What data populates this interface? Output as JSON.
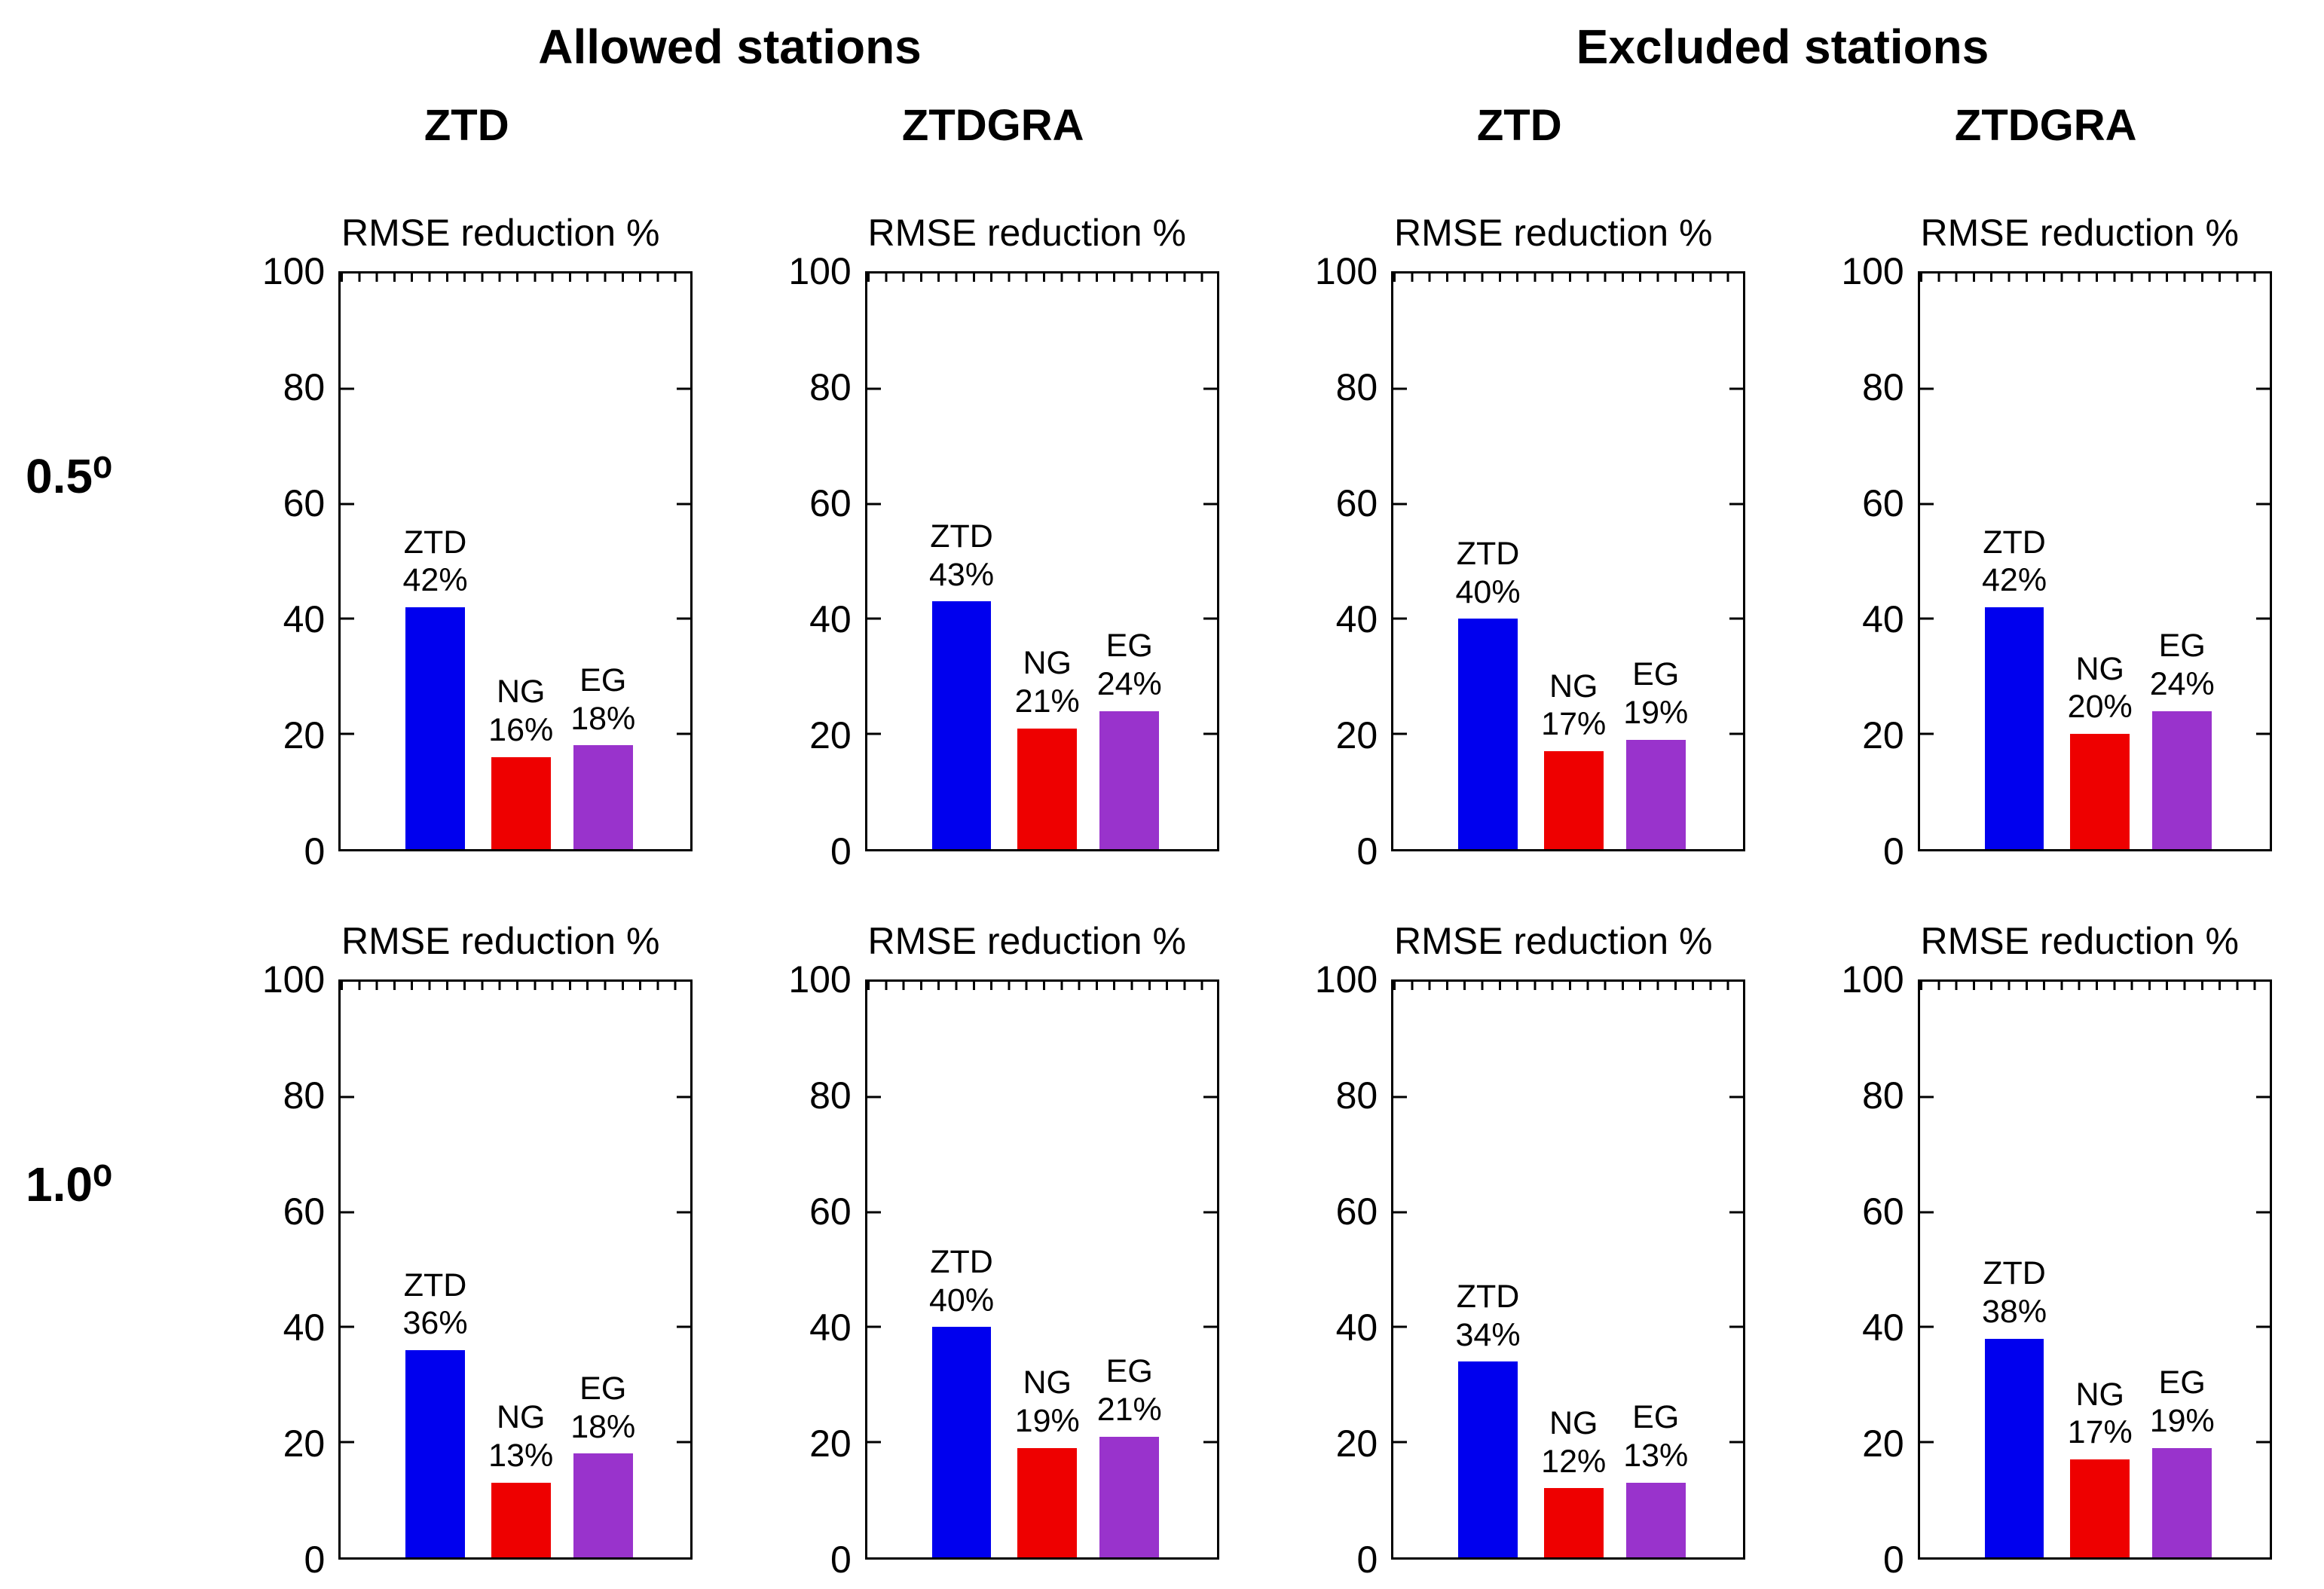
{
  "header": {
    "group_headers": [
      {
        "label": "Allowed stations"
      },
      {
        "label": "Excluded stations"
      }
    ],
    "column_headers": [
      {
        "label": "ZTD"
      },
      {
        "label": "ZTDGRA"
      },
      {
        "label": "ZTD"
      },
      {
        "label": "ZTDGRA"
      }
    ]
  },
  "rows": [
    {
      "label": "0.5⁰"
    },
    {
      "label": "1.0⁰"
    }
  ],
  "axis": {
    "ylim": [
      0,
      100
    ],
    "ticks": [
      0,
      20,
      40,
      60,
      80,
      100
    ],
    "grid": false
  },
  "bar_colors": [
    "#0000EE",
    "#EE0000",
    "#9933CC"
  ],
  "value_suffix": "%",
  "chart_data": [
    {
      "type": "bar",
      "row": "0.5⁰",
      "station_group": "Allowed stations",
      "panel": "ZTD",
      "title": "RMSE reduction %",
      "categories": [
        "ZTD",
        "NG",
        "EG"
      ],
      "values": [
        42,
        16,
        18
      ],
      "ylim": [
        0,
        100
      ],
      "yticks": [
        0,
        20,
        40,
        60,
        80,
        100
      ]
    },
    {
      "type": "bar",
      "row": "0.5⁰",
      "station_group": "Allowed stations",
      "panel": "ZTDGRA",
      "title": "RMSE reduction %",
      "categories": [
        "ZTD",
        "NG",
        "EG"
      ],
      "values": [
        43,
        21,
        24
      ],
      "ylim": [
        0,
        100
      ],
      "yticks": [
        0,
        20,
        40,
        60,
        80,
        100
      ]
    },
    {
      "type": "bar",
      "row": "0.5⁰",
      "station_group": "Excluded stations",
      "panel": "ZTD",
      "title": "RMSE reduction %",
      "categories": [
        "ZTD",
        "NG",
        "EG"
      ],
      "values": [
        40,
        17,
        19
      ],
      "ylim": [
        0,
        100
      ],
      "yticks": [
        0,
        20,
        40,
        60,
        80,
        100
      ]
    },
    {
      "type": "bar",
      "row": "0.5⁰",
      "station_group": "Excluded stations",
      "panel": "ZTDGRA",
      "title": "RMSE reduction %",
      "categories": [
        "ZTD",
        "NG",
        "EG"
      ],
      "values": [
        42,
        20,
        24
      ],
      "ylim": [
        0,
        100
      ],
      "yticks": [
        0,
        20,
        40,
        60,
        80,
        100
      ]
    },
    {
      "type": "bar",
      "row": "1.0⁰",
      "station_group": "Allowed stations",
      "panel": "ZTD",
      "title": "RMSE reduction %",
      "categories": [
        "ZTD",
        "NG",
        "EG"
      ],
      "values": [
        36,
        13,
        18
      ],
      "ylim": [
        0,
        100
      ],
      "yticks": [
        0,
        20,
        40,
        60,
        80,
        100
      ]
    },
    {
      "type": "bar",
      "row": "1.0⁰",
      "station_group": "Allowed stations",
      "panel": "ZTDGRA",
      "title": "RMSE reduction %",
      "categories": [
        "ZTD",
        "NG",
        "EG"
      ],
      "values": [
        40,
        19,
        21
      ],
      "ylim": [
        0,
        100
      ],
      "yticks": [
        0,
        20,
        40,
        60,
        80,
        100
      ]
    },
    {
      "type": "bar",
      "row": "1.0⁰",
      "station_group": "Excluded stations",
      "panel": "ZTD",
      "title": "RMSE reduction %",
      "categories": [
        "ZTD",
        "NG",
        "EG"
      ],
      "values": [
        34,
        12,
        13
      ],
      "ylim": [
        0,
        100
      ],
      "yticks": [
        0,
        20,
        40,
        60,
        80,
        100
      ]
    },
    {
      "type": "bar",
      "row": "1.0⁰",
      "station_group": "Excluded stations",
      "panel": "ZTDGRA",
      "title": "RMSE reduction %",
      "categories": [
        "ZTD",
        "NG",
        "EG"
      ],
      "values": [
        38,
        17,
        19
      ],
      "ylim": [
        0,
        100
      ],
      "yticks": [
        0,
        20,
        40,
        60,
        80,
        100
      ]
    }
  ]
}
